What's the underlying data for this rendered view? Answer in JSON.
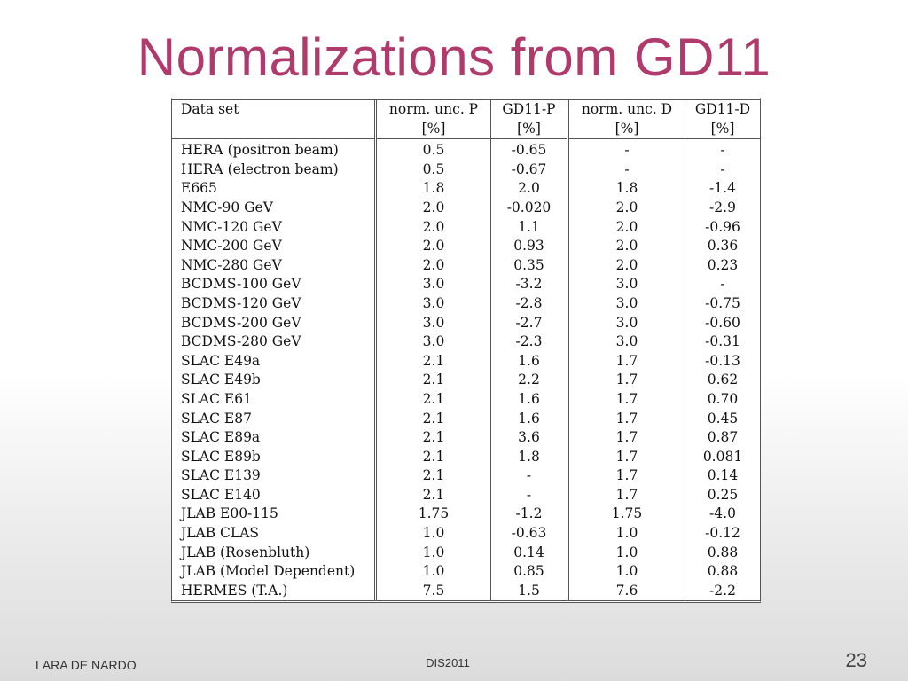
{
  "title": "Normalizations from GD11",
  "table": {
    "headers": [
      [
        "Data set",
        "norm.  unc.  P",
        "GD11-P",
        "norm.  unc.  D",
        "GD11-D"
      ],
      [
        "",
        "[%]",
        "[%]",
        "[%]",
        "[%]"
      ]
    ],
    "rows": [
      [
        "HERA (positron beam)",
        "0.5",
        "-0.65",
        "-",
        "-"
      ],
      [
        "HERA (electron beam)",
        "0.5",
        "-0.67",
        "-",
        "-"
      ],
      [
        "E665",
        "1.8",
        "2.0",
        "1.8",
        "-1.4"
      ],
      [
        "NMC-90 GeV",
        "2.0",
        "-0.020",
        "2.0",
        "-2.9"
      ],
      [
        "NMC-120 GeV",
        "2.0",
        "1.1",
        "2.0",
        "-0.96"
      ],
      [
        "NMC-200 GeV",
        "2.0",
        "0.93",
        "2.0",
        "0.36"
      ],
      [
        "NMC-280 GeV",
        "2.0",
        "0.35",
        "2.0",
        "0.23"
      ],
      [
        "BCDMS-100 GeV",
        "3.0",
        "-3.2",
        "3.0",
        "-"
      ],
      [
        "BCDMS-120 GeV",
        "3.0",
        "-2.8",
        "3.0",
        "-0.75"
      ],
      [
        "BCDMS-200 GeV",
        "3.0",
        "-2.7",
        "3.0",
        "-0.60"
      ],
      [
        "BCDMS-280 GeV",
        "3.0",
        "-2.3",
        "3.0",
        "-0.31"
      ],
      [
        "SLAC E49a",
        "2.1",
        "1.6",
        "1.7",
        "-0.13"
      ],
      [
        "SLAC E49b",
        "2.1",
        "2.2",
        "1.7",
        "0.62"
      ],
      [
        "SLAC E61",
        "2.1",
        "1.6",
        "1.7",
        "0.70"
      ],
      [
        "SLAC E87",
        "2.1",
        "1.6",
        "1.7",
        "0.45"
      ],
      [
        "SLAC E89a",
        "2.1",
        "3.6",
        "1.7",
        "0.87"
      ],
      [
        "SLAC E89b",
        "2.1",
        "1.8",
        "1.7",
        "0.081"
      ],
      [
        "SLAC E139",
        "2.1",
        "-",
        "1.7",
        "0.14"
      ],
      [
        "SLAC E140",
        "2.1",
        "-",
        "1.7",
        "0.25"
      ],
      [
        "JLAB E00-115",
        "1.75",
        "-1.2",
        "1.75",
        "-4.0"
      ],
      [
        "JLAB CLAS",
        "1.0",
        "-0.63",
        "1.0",
        "-0.12"
      ],
      [
        "JLAB (Rosenbluth)",
        "1.0",
        "0.14",
        "1.0",
        "0.88"
      ],
      [
        "JLAB (Model Dependent)",
        "1.0",
        "0.85",
        "1.0",
        "0.88"
      ],
      [
        "HERMES (T.A.)",
        "7.5",
        "1.5",
        "7.6",
        "-2.2"
      ]
    ]
  },
  "footer": {
    "author": "LARA DE NARDO",
    "event": "DIS2011",
    "page_number": "23"
  },
  "colors": {
    "title": "#b03a6b"
  }
}
